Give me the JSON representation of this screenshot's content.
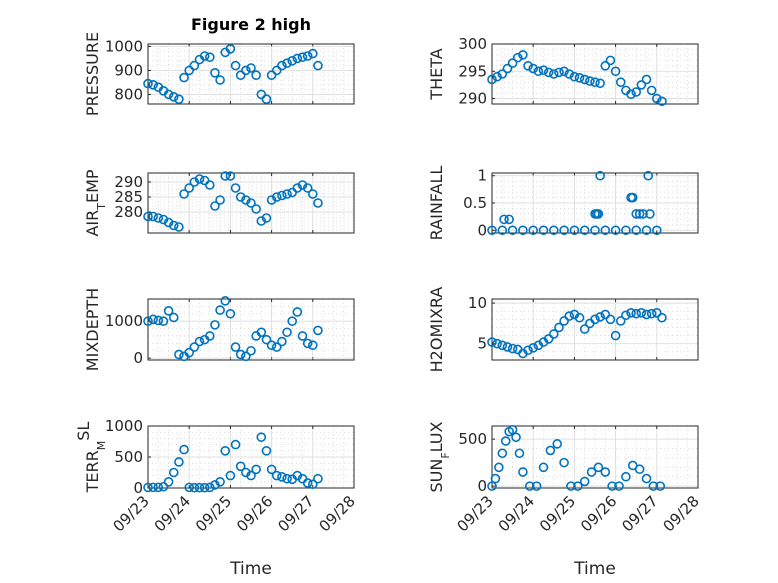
{
  "figure": {
    "title": "Figure 2 high",
    "xlabel": "Time"
  },
  "colors": {
    "marker": "#0072BD",
    "axes": "#262626"
  },
  "chart_data": [
    {
      "type": "scatter",
      "ylabel": "PRESSURE",
      "ylim": [
        760,
        1010
      ],
      "yticks": [
        800,
        900,
        1000
      ],
      "x": [
        "2018-09-23T00:00",
        "2018-09-23T03:00",
        "2018-09-23T06:00",
        "2018-09-23T09:00",
        "2018-09-23T12:00",
        "2018-09-23T15:00",
        "2018-09-23T18:00",
        "2018-09-23T21:00",
        "2018-09-24T00:00",
        "2018-09-24T03:00",
        "2018-09-24T06:00",
        "2018-09-24T09:00",
        "2018-09-24T12:00",
        "2018-09-24T15:00",
        "2018-09-24T18:00",
        "2018-09-24T21:00",
        "2018-09-25T00:00",
        "2018-09-25T03:00",
        "2018-09-25T06:00",
        "2018-09-25T09:00",
        "2018-09-25T12:00",
        "2018-09-25T15:00",
        "2018-09-25T18:00",
        "2018-09-25T21:00",
        "2018-09-26T00:00",
        "2018-09-26T03:00",
        "2018-09-26T06:00",
        "2018-09-26T09:00",
        "2018-09-26T12:00",
        "2018-09-26T15:00",
        "2018-09-26T18:00",
        "2018-09-26T21:00",
        "2018-09-27T00:00",
        "2018-09-27T03:00"
      ],
      "y": [
        845,
        840,
        830,
        815,
        800,
        790,
        780,
        870,
        900,
        920,
        945,
        960,
        955,
        890,
        860,
        975,
        990,
        920,
        880,
        900,
        910,
        880,
        800,
        780,
        880,
        900,
        920,
        930,
        940,
        950,
        955,
        960,
        970,
        920
      ]
    },
    {
      "type": "scatter",
      "ylabel": "THETA",
      "ylim": [
        289,
        300
      ],
      "yticks": [
        290,
        295,
        300
      ],
      "x": [
        "2018-09-23T00:00",
        "2018-09-23T03:00",
        "2018-09-23T06:00",
        "2018-09-23T09:00",
        "2018-09-23T12:00",
        "2018-09-23T15:00",
        "2018-09-23T18:00",
        "2018-09-23T21:00",
        "2018-09-24T00:00",
        "2018-09-24T03:00",
        "2018-09-24T06:00",
        "2018-09-24T09:00",
        "2018-09-24T12:00",
        "2018-09-24T15:00",
        "2018-09-24T18:00",
        "2018-09-24T21:00",
        "2018-09-25T00:00",
        "2018-09-25T03:00",
        "2018-09-25T06:00",
        "2018-09-25T09:00",
        "2018-09-25T12:00",
        "2018-09-25T15:00",
        "2018-09-25T18:00",
        "2018-09-25T21:00",
        "2018-09-26T00:00",
        "2018-09-26T03:00",
        "2018-09-26T06:00",
        "2018-09-26T09:00",
        "2018-09-26T12:00",
        "2018-09-26T15:00",
        "2018-09-26T18:00",
        "2018-09-26T21:00",
        "2018-09-27T00:00",
        "2018-09-27T03:00"
      ],
      "y": [
        293.5,
        294,
        294.5,
        295.5,
        296.5,
        297.5,
        298,
        296,
        295.5,
        295,
        295.2,
        294.8,
        294.5,
        294.8,
        295,
        294.5,
        294,
        293.8,
        293.5,
        293.2,
        293,
        292.8,
        296,
        297,
        295,
        293,
        291.5,
        290.8,
        291.2,
        292.5,
        293.5,
        291.5,
        290,
        289.5
      ]
    },
    {
      "type": "scatter",
      "ylabel": "AIR_TEMP",
      "ylim": [
        273,
        293
      ],
      "yticks": [
        280,
        285,
        290
      ],
      "x": [
        "2018-09-23T00:00",
        "2018-09-23T03:00",
        "2018-09-23T06:00",
        "2018-09-23T09:00",
        "2018-09-23T12:00",
        "2018-09-23T15:00",
        "2018-09-23T18:00",
        "2018-09-23T21:00",
        "2018-09-24T00:00",
        "2018-09-24T03:00",
        "2018-09-24T06:00",
        "2018-09-24T09:00",
        "2018-09-24T12:00",
        "2018-09-24T15:00",
        "2018-09-24T18:00",
        "2018-09-24T21:00",
        "2018-09-25T00:00",
        "2018-09-25T03:00",
        "2018-09-25T06:00",
        "2018-09-25T09:00",
        "2018-09-25T12:00",
        "2018-09-25T15:00",
        "2018-09-25T18:00",
        "2018-09-25T21:00",
        "2018-09-26T00:00",
        "2018-09-26T03:00",
        "2018-09-26T06:00",
        "2018-09-26T09:00",
        "2018-09-26T12:00",
        "2018-09-26T15:00",
        "2018-09-26T18:00",
        "2018-09-26T21:00",
        "2018-09-27T00:00",
        "2018-09-27T03:00"
      ],
      "y": [
        278.5,
        278.5,
        278,
        277.5,
        276.5,
        275.5,
        275,
        286,
        288,
        290,
        291,
        290.5,
        289,
        282,
        284,
        292,
        292,
        288,
        285,
        284,
        283,
        281,
        277,
        278,
        284,
        285,
        285.5,
        286,
        286.5,
        288,
        289,
        288,
        286,
        283
      ]
    },
    {
      "type": "scatter",
      "ylabel": "RAINFALL",
      "ylim": [
        -0.05,
        1.05
      ],
      "yticks": [
        0,
        0.5,
        1
      ],
      "x": [
        "2018-09-23T00:00",
        "2018-09-23T06:00",
        "2018-09-23T12:00",
        "2018-09-23T18:00",
        "2018-09-24T00:00",
        "2018-09-24T06:00",
        "2018-09-24T12:00",
        "2018-09-24T18:00",
        "2018-09-25T00:00",
        "2018-09-25T06:00",
        "2018-09-25T12:00",
        "2018-09-25T18:00",
        "2018-09-26T00:00",
        "2018-09-26T06:00",
        "2018-09-26T12:00",
        "2018-09-26T18:00",
        "2018-09-27T00:00",
        "2018-09-23T07:00",
        "2018-09-23T10:00",
        "2018-09-25T12:00",
        "2018-09-25T13:00",
        "2018-09-25T14:00",
        "2018-09-25T15:00",
        "2018-09-26T09:00",
        "2018-09-26T10:00",
        "2018-09-26T12:00",
        "2018-09-26T14:00",
        "2018-09-26T16:00",
        "2018-09-26T19:00",
        "2018-09-26T20:00"
      ],
      "y": [
        0,
        0,
        0,
        0,
        0,
        0,
        0,
        0,
        0,
        0,
        0,
        0,
        0,
        0,
        0,
        0,
        0,
        0.2,
        0.2,
        0.3,
        0.3,
        0.3,
        1.0,
        0.6,
        0.6,
        0.3,
        0.3,
        0.3,
        1.0,
        0.3
      ]
    },
    {
      "type": "scatter",
      "ylabel": "MIXDEPTH",
      "ylim": [
        -50,
        1600
      ],
      "yticks": [
        0,
        1000
      ],
      "x": [
        "2018-09-23T00:00",
        "2018-09-23T03:00",
        "2018-09-23T06:00",
        "2018-09-23T09:00",
        "2018-09-23T12:00",
        "2018-09-23T15:00",
        "2018-09-23T18:00",
        "2018-09-23T21:00",
        "2018-09-24T00:00",
        "2018-09-24T03:00",
        "2018-09-24T06:00",
        "2018-09-24T09:00",
        "2018-09-24T12:00",
        "2018-09-24T15:00",
        "2018-09-24T18:00",
        "2018-09-24T21:00",
        "2018-09-25T00:00",
        "2018-09-25T03:00",
        "2018-09-25T06:00",
        "2018-09-25T09:00",
        "2018-09-25T12:00",
        "2018-09-25T15:00",
        "2018-09-25T18:00",
        "2018-09-25T21:00",
        "2018-09-26T00:00",
        "2018-09-26T03:00",
        "2018-09-26T06:00",
        "2018-09-26T09:00",
        "2018-09-26T12:00",
        "2018-09-26T15:00",
        "2018-09-26T18:00",
        "2018-09-26T21:00",
        "2018-09-27T00:00",
        "2018-09-27T03:00"
      ],
      "y": [
        1000,
        1050,
        1020,
        1000,
        1280,
        1100,
        100,
        50,
        150,
        300,
        450,
        500,
        600,
        900,
        1300,
        1550,
        1200,
        300,
        100,
        50,
        200,
        600,
        700,
        500,
        350,
        300,
        450,
        700,
        1000,
        1250,
        600,
        400,
        350,
        750
      ]
    },
    {
      "type": "scatter",
      "ylabel": "H2OMIXRA",
      "ylim": [
        3,
        10.5
      ],
      "yticks": [
        5,
        10
      ],
      "x": [
        "2018-09-23T00:00",
        "2018-09-23T03:00",
        "2018-09-23T06:00",
        "2018-09-23T09:00",
        "2018-09-23T12:00",
        "2018-09-23T15:00",
        "2018-09-23T18:00",
        "2018-09-23T21:00",
        "2018-09-24T00:00",
        "2018-09-24T03:00",
        "2018-09-24T06:00",
        "2018-09-24T09:00",
        "2018-09-24T12:00",
        "2018-09-24T15:00",
        "2018-09-24T18:00",
        "2018-09-24T21:00",
        "2018-09-25T00:00",
        "2018-09-25T03:00",
        "2018-09-25T06:00",
        "2018-09-25T09:00",
        "2018-09-25T12:00",
        "2018-09-25T15:00",
        "2018-09-25T18:00",
        "2018-09-25T21:00",
        "2018-09-26T00:00",
        "2018-09-26T03:00",
        "2018-09-26T06:00",
        "2018-09-26T09:00",
        "2018-09-26T12:00",
        "2018-09-26T15:00",
        "2018-09-26T18:00",
        "2018-09-26T21:00",
        "2018-09-27T00:00",
        "2018-09-27T03:00"
      ],
      "y": [
        5.2,
        5.0,
        4.8,
        4.6,
        4.4,
        4.3,
        3.8,
        4.2,
        4.5,
        4.8,
        5.2,
        5.6,
        6.2,
        7.0,
        7.8,
        8.4,
        8.6,
        8.2,
        6.8,
        7.5,
        8.0,
        8.3,
        8.6,
        8.0,
        6.0,
        7.8,
        8.5,
        8.8,
        8.7,
        8.8,
        8.6,
        8.7,
        8.8,
        8.2
      ]
    },
    {
      "type": "scatter",
      "ylabel": "TERR_MSL",
      "ylim": [
        0,
        1000
      ],
      "yticks": [
        0,
        500,
        1000
      ],
      "x": [
        "2018-09-23T00:00",
        "2018-09-23T03:00",
        "2018-09-23T06:00",
        "2018-09-23T09:00",
        "2018-09-23T12:00",
        "2018-09-23T15:00",
        "2018-09-23T18:00",
        "2018-09-23T21:00",
        "2018-09-24T00:00",
        "2018-09-24T03:00",
        "2018-09-24T06:00",
        "2018-09-24T09:00",
        "2018-09-24T12:00",
        "2018-09-24T15:00",
        "2018-09-24T18:00",
        "2018-09-24T21:00",
        "2018-09-25T00:00",
        "2018-09-25T03:00",
        "2018-09-25T06:00",
        "2018-09-25T09:00",
        "2018-09-25T12:00",
        "2018-09-25T15:00",
        "2018-09-25T18:00",
        "2018-09-25T21:00",
        "2018-09-26T00:00",
        "2018-09-26T03:00",
        "2018-09-26T06:00",
        "2018-09-26T09:00",
        "2018-09-26T12:00",
        "2018-09-26T15:00",
        "2018-09-26T18:00",
        "2018-09-26T21:00",
        "2018-09-27T00:00",
        "2018-09-27T03:00"
      ],
      "y": [
        10,
        10,
        10,
        20,
        100,
        250,
        420,
        620,
        10,
        5,
        5,
        5,
        10,
        50,
        100,
        600,
        200,
        700,
        350,
        250,
        200,
        300,
        820,
        600,
        300,
        200,
        180,
        150,
        140,
        200,
        150,
        80,
        60,
        150
      ]
    },
    {
      "type": "scatter",
      "ylabel": "SUN_FLUX",
      "ylim": [
        -20,
        640
      ],
      "yticks": [
        0,
        500
      ],
      "x": [
        "2018-09-23T00:00",
        "2018-09-23T02:00",
        "2018-09-23T04:00",
        "2018-09-23T06:00",
        "2018-09-23T08:00",
        "2018-09-23T10:00",
        "2018-09-23T12:00",
        "2018-09-23T14:00",
        "2018-09-23T16:00",
        "2018-09-23T18:00",
        "2018-09-23T22:00",
        "2018-09-24T02:00",
        "2018-09-24T06:00",
        "2018-09-24T10:00",
        "2018-09-24T14:00",
        "2018-09-24T18:00",
        "2018-09-24T22:00",
        "2018-09-25T02:00",
        "2018-09-25T06:00",
        "2018-09-25T10:00",
        "2018-09-25T14:00",
        "2018-09-25T18:00",
        "2018-09-25T22:00",
        "2018-09-26T02:00",
        "2018-09-26T06:00",
        "2018-09-26T10:00",
        "2018-09-26T14:00",
        "2018-09-26T18:00",
        "2018-09-26T22:00",
        "2018-09-27T02:00"
      ],
      "y": [
        0,
        80,
        200,
        350,
        480,
        580,
        600,
        520,
        350,
        150,
        0,
        0,
        200,
        380,
        450,
        250,
        0,
        0,
        50,
        150,
        200,
        150,
        0,
        0,
        100,
        220,
        180,
        80,
        0,
        0
      ]
    }
  ],
  "x_axis": {
    "ticks": [
      "2018-09-23",
      "2018-09-24",
      "2018-09-25",
      "2018-09-26",
      "2018-09-27",
      "2018-09-28"
    ],
    "tick_labels": [
      "09/23",
      "09/24",
      "09/25",
      "09/26",
      "09/27",
      "09/28"
    ],
    "xlim": [
      "2018-09-23",
      "2018-09-28"
    ]
  },
  "ylabels_display": [
    {
      "main": "PRESSURE"
    },
    {
      "main": "THETA"
    },
    {
      "main": "AIR",
      "sub": "T",
      "rest": "EMP"
    },
    {
      "main": "RAINFALL"
    },
    {
      "main": "MIXDEPTH"
    },
    {
      "main": "H2OMIXRA"
    },
    {
      "main": "TERR",
      "sub": "M",
      "sup": "SL"
    },
    {
      "main": "SUN",
      "sub": "F",
      "rest": "LUX"
    }
  ]
}
